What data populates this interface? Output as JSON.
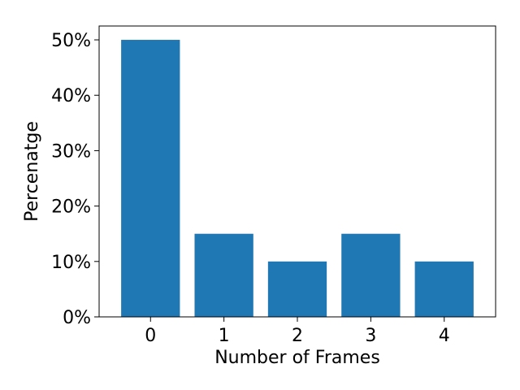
{
  "chart_data": {
    "type": "bar",
    "categories": [
      "0",
      "1",
      "2",
      "3",
      "4"
    ],
    "values": [
      50,
      15,
      10,
      15,
      10
    ],
    "title": "",
    "xlabel": "Number of Frames",
    "ylabel": "Percenatge",
    "ylim": [
      0,
      52.5
    ],
    "yticks": [
      0,
      10,
      20,
      30,
      40,
      50
    ],
    "ytick_labels": [
      "0%",
      "10%",
      "20%",
      "30%",
      "40%",
      "50%"
    ],
    "bar_color": "#1f77b4",
    "grid": false,
    "legend": "none"
  }
}
